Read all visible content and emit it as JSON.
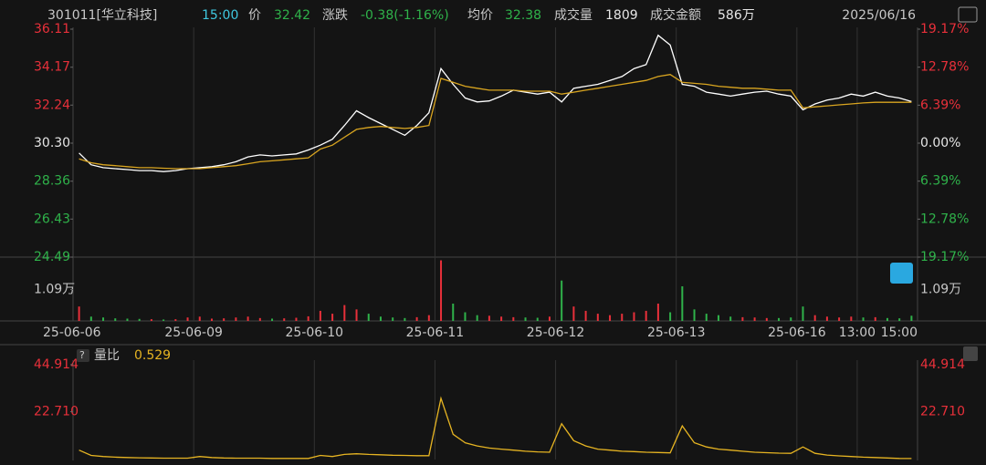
{
  "header": {
    "code": "301011[华立科技]",
    "time": "15:00",
    "price_label": "价",
    "price": "32.42",
    "change_label": "涨跌",
    "change": "-0.38(-1.16%)",
    "avg_label": "均价",
    "avg": "32.38",
    "volume_label": "成交量",
    "volume": "1809",
    "amount_label": "成交金额",
    "amount": "586万",
    "date": "2025/06/16"
  },
  "chart_data": [
    {
      "type": "line",
      "xlim": [
        0,
        70
      ],
      "ylim": [
        24.49,
        36.11
      ],
      "yticks": [
        36.11,
        34.17,
        32.24,
        {
          "value": 30.3,
          "label": "30.30"
        },
        28.36,
        26.43,
        24.49
      ],
      "y2lim": [
        -19.17,
        19.17
      ],
      "y2ticks": [
        {
          "value": 19.17,
          "label": "19.17%"
        },
        {
          "value": 12.78,
          "label": "12.78%"
        },
        {
          "value": 6.39,
          "label": "6.39%"
        },
        {
          "value": 0,
          "label": "0.00%"
        },
        {
          "value": -6.39,
          "label": "6.39%"
        },
        {
          "value": -12.78,
          "label": "12.78%"
        },
        {
          "value": -19.17,
          "label": "19.17%"
        }
      ],
      "series": [
        {
          "color": "#ffffff",
          "values": [
            29.8,
            29.2,
            29.05,
            29.0,
            28.95,
            28.9,
            28.9,
            28.85,
            28.9,
            29.0,
            29.05,
            29.1,
            29.2,
            29.35,
            29.6,
            29.7,
            29.65,
            29.7,
            29.75,
            29.95,
            30.2,
            30.5,
            31.2,
            31.95,
            31.6,
            31.3,
            31.0,
            30.7,
            31.2,
            31.85,
            34.1,
            33.3,
            32.6,
            32.4,
            32.45,
            32.7,
            33.0,
            32.9,
            32.8,
            32.9,
            32.4,
            33.1,
            33.2,
            33.3,
            33.5,
            33.7,
            34.1,
            34.3,
            35.8,
            35.3,
            33.3,
            33.2,
            32.9,
            32.8,
            32.7,
            32.8,
            32.9,
            32.95,
            32.8,
            32.7,
            32.0,
            32.3,
            32.5,
            32.6,
            32.8,
            32.7,
            32.9,
            32.7,
            32.6,
            32.42
          ]
        },
        {
          "color": "#d9a520",
          "values": [
            29.5,
            29.3,
            29.2,
            29.15,
            29.1,
            29.05,
            29.05,
            29.02,
            29.0,
            29.0,
            29.0,
            29.05,
            29.1,
            29.15,
            29.25,
            29.35,
            29.4,
            29.45,
            29.5,
            29.55,
            30.0,
            30.2,
            30.6,
            31.0,
            31.1,
            31.15,
            31.1,
            31.05,
            31.1,
            31.2,
            33.6,
            33.4,
            33.2,
            33.1,
            33.0,
            33.0,
            33.0,
            32.95,
            32.95,
            32.95,
            32.8,
            32.9,
            33.0,
            33.1,
            33.2,
            33.3,
            33.4,
            33.5,
            33.7,
            33.8,
            33.4,
            33.35,
            33.3,
            33.2,
            33.15,
            33.1,
            33.1,
            33.05,
            33.0,
            33.0,
            32.1,
            32.15,
            32.2,
            32.25,
            32.3,
            32.35,
            32.38,
            32.38,
            32.38,
            32.38
          ]
        }
      ]
    },
    {
      "type": "bar",
      "xlim": [
        0,
        70
      ],
      "xticks": [
        {
          "value": 0,
          "label": "25-06-06"
        },
        {
          "value": 10,
          "label": "25-06-09"
        },
        {
          "value": 20,
          "label": "25-06-10"
        },
        {
          "value": 30,
          "label": "25-06-11"
        },
        {
          "value": 40,
          "label": "25-06-12"
        },
        {
          "value": 50,
          "label": "25-06-13"
        },
        {
          "value": 60,
          "label": "25-06-16"
        },
        {
          "value": 65,
          "label": "13:00"
        },
        {
          "value": 70,
          "label": "15:00"
        }
      ],
      "ylim": [
        0,
        21800
      ],
      "yticks": [
        {
          "value": 10900,
          "label": "1.09万"
        }
      ],
      "up_color": "#e8303a",
      "down_color": "#2fb24a",
      "values": [
        5000,
        1500,
        1200,
        900,
        800,
        700,
        600,
        500,
        600,
        1200,
        1500,
        800,
        900,
        1200,
        1500,
        1000,
        800,
        900,
        1100,
        1600,
        3500,
        2500,
        5500,
        4000,
        2500,
        1500,
        1200,
        1000,
        1300,
        2000,
        21000,
        6000,
        3000,
        2000,
        1800,
        1500,
        1300,
        1200,
        1100,
        1500,
        14000,
        5000,
        3500,
        2500,
        2000,
        2500,
        3000,
        3500,
        6000,
        3000,
        12000,
        4000,
        2500,
        2000,
        1500,
        1300,
        1200,
        1000,
        1000,
        1200,
        5000,
        2000,
        1500,
        1200,
        1500,
        1200,
        1300,
        1000,
        900,
        1800
      ]
    },
    {
      "type": "line",
      "title": "量比",
      "current": 0.529,
      "xlim": [
        0,
        70
      ],
      "ylim": [
        0.5,
        44.914
      ],
      "yticks": [
        44.914,
        {
          "value": 22.71,
          "label": "22.710"
        }
      ],
      "color": "#e6b422",
      "values": [
        4.5,
        2,
        1.5,
        1.2,
        1,
        0.9,
        0.8,
        0.7,
        0.7,
        0.7,
        1.5,
        1,
        0.8,
        0.7,
        0.7,
        0.7,
        0.6,
        0.6,
        0.6,
        0.6,
        2,
        1.5,
        2.5,
        2.8,
        2.5,
        2.3,
        2.1,
        2,
        1.9,
        1.9,
        29,
        12,
        8,
        6.5,
        5.5,
        5,
        4.5,
        4,
        3.7,
        3.5,
        17,
        9,
        6.5,
        5,
        4.5,
        4,
        3.8,
        3.5,
        3.4,
        3.2,
        16,
        8,
        6,
        5,
        4.5,
        4,
        3.5,
        3.3,
        3.1,
        3,
        6,
        3,
        2.2,
        1.8,
        1.5,
        1.2,
        1,
        0.8,
        0.6,
        0.529
      ]
    }
  ]
}
